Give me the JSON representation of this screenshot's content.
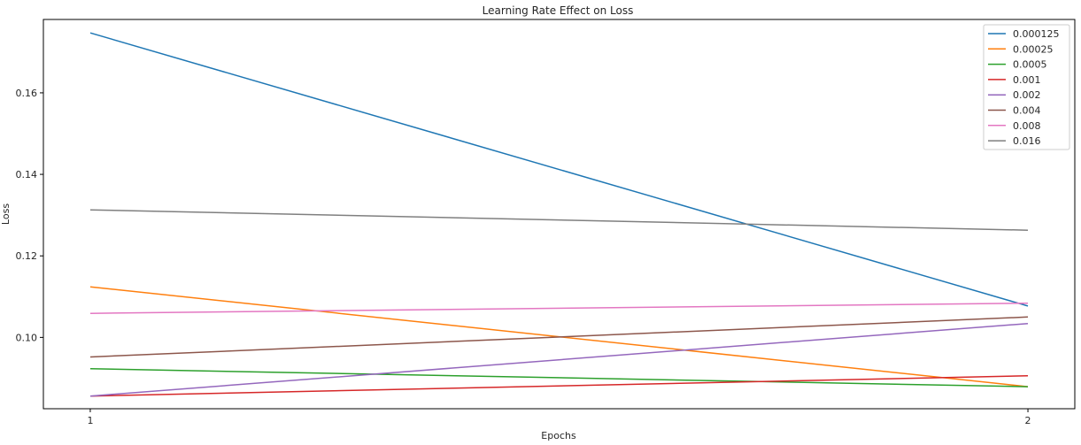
{
  "chart_data": {
    "type": "line",
    "title": "Learning Rate Effect on Loss",
    "xlabel": "Epochs",
    "ylabel": "Loss",
    "x": [
      1,
      2
    ],
    "x_ticks": [
      "1",
      "2"
    ],
    "y_ticks": [
      "0.10",
      "0.12",
      "0.14",
      "0.16"
    ],
    "xlim": [
      0.95,
      2.05
    ],
    "ylim": [
      0.0825,
      0.178
    ],
    "grid": false,
    "legend_position": "top-right",
    "series": [
      {
        "name": "0.000125",
        "color": "#1f77b4",
        "values": [
          0.1747,
          0.1077
        ]
      },
      {
        "name": "0.00025",
        "color": "#ff7f0e",
        "values": [
          0.1124,
          0.0879
        ]
      },
      {
        "name": "0.0005",
        "color": "#2ca02c",
        "values": [
          0.0923,
          0.0879
        ]
      },
      {
        "name": "0.001",
        "color": "#d62728",
        "values": [
          0.0856,
          0.0906
        ]
      },
      {
        "name": "0.002",
        "color": "#9467bd",
        "values": [
          0.0856,
          0.1034
        ]
      },
      {
        "name": "0.004",
        "color": "#8c564b",
        "values": [
          0.0952,
          0.105
        ]
      },
      {
        "name": "0.008",
        "color": "#e377c2",
        "values": [
          0.1059,
          0.1084
        ]
      },
      {
        "name": "0.016",
        "color": "#7f7f7f",
        "values": [
          0.1313,
          0.1263
        ]
      }
    ]
  }
}
